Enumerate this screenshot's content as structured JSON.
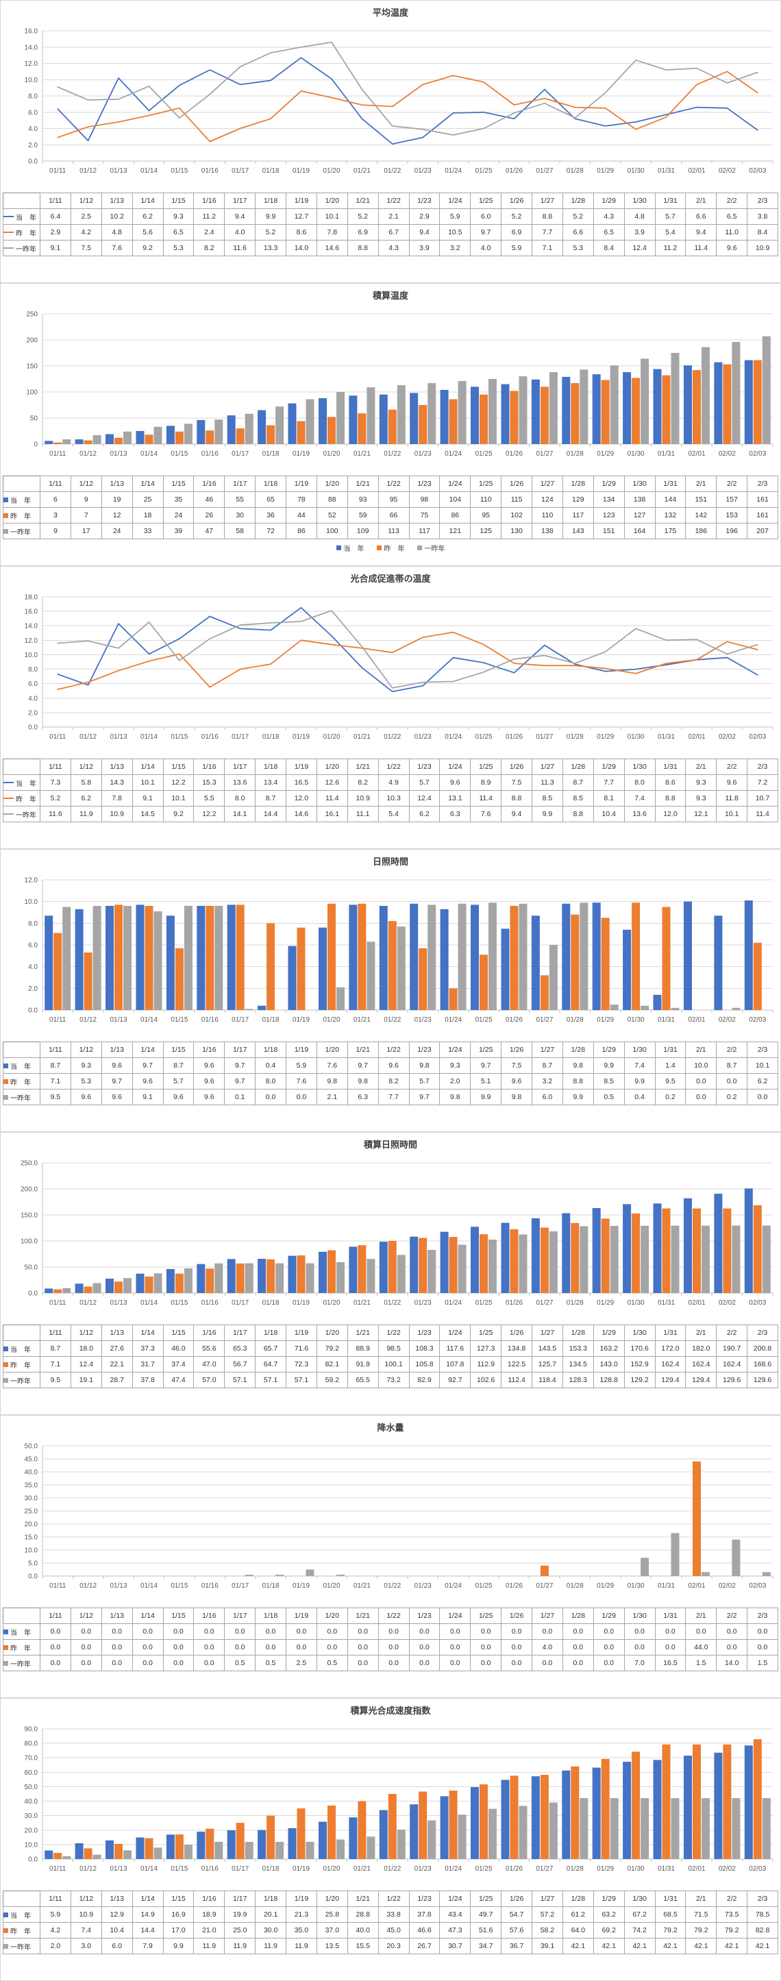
{
  "page": {
    "background": "#ffffff"
  },
  "series_meta": [
    {
      "key": "this_year",
      "label": "当　年",
      "color": "#4472C4"
    },
    {
      "key": "last_year",
      "label": "昨　年",
      "color": "#ED7D31"
    },
    {
      "key": "two_years_ago",
      "label": "一昨年",
      "color": "#A5A5A5"
    }
  ],
  "axis_colors": {
    "grid": "#d9d9d9",
    "axis": "#bfbfbf",
    "tick_label": "#595959"
  },
  "x_labels": [
    "01/11",
    "01/12",
    "01/13",
    "01/14",
    "01/15",
    "01/16",
    "01/17",
    "01/18",
    "01/19",
    "01/20",
    "01/21",
    "01/22",
    "01/23",
    "01/24",
    "01/25",
    "01/26",
    "01/27",
    "01/28",
    "01/29",
    "01/30",
    "01/31",
    "02/01",
    "02/02",
    "02/03"
  ],
  "table_dates": [
    "1/11",
    "1/12",
    "1/13",
    "1/14",
    "1/15",
    "1/16",
    "1/17",
    "1/18",
    "1/19",
    "1/20",
    "1/21",
    "1/22",
    "1/23",
    "1/24",
    "1/25",
    "1/26",
    "1/27",
    "1/28",
    "1/29",
    "1/30",
    "1/31",
    "2/1",
    "2/2",
    "2/3"
  ],
  "chart_data": [
    {
      "id": "average-temperature",
      "type": "line",
      "title": "平均温度",
      "ylim": [
        0,
        16
      ],
      "ytick": 2,
      "decimals": 1,
      "legend": false,
      "grid": true,
      "series": [
        {
          "name": "当年",
          "values": [
            6.4,
            2.5,
            10.2,
            6.2,
            9.3,
            11.2,
            9.4,
            9.9,
            12.7,
            10.1,
            5.2,
            2.1,
            2.9,
            5.9,
            6.0,
            5.2,
            8.8,
            5.2,
            4.3,
            4.8,
            5.7,
            6.6,
            6.5,
            3.8
          ]
        },
        {
          "name": "昨年",
          "values": [
            2.9,
            4.2,
            4.8,
            5.6,
            6.5,
            2.4,
            4.0,
            5.2,
            8.6,
            7.8,
            6.9,
            6.7,
            9.4,
            10.5,
            9.7,
            6.9,
            7.7,
            6.6,
            6.5,
            3.9,
            5.4,
            9.4,
            11.0,
            8.4
          ]
        },
        {
          "name": "一昨年",
          "values": [
            9.1,
            7.5,
            7.6,
            9.2,
            5.3,
            8.2,
            11.6,
            13.3,
            14.0,
            14.6,
            8.8,
            4.3,
            3.9,
            3.2,
            4.0,
            5.9,
            7.1,
            5.3,
            8.4,
            12.4,
            11.2,
            11.4,
            9.6,
            10.9
          ]
        }
      ]
    },
    {
      "id": "cumulative-temperature",
      "type": "bar",
      "title": "積算温度",
      "ylim": [
        0,
        250
      ],
      "ytick": 50,
      "decimals": 0,
      "legend": true,
      "grid": true,
      "series": [
        {
          "name": "当年",
          "values": [
            6,
            9,
            19,
            25,
            35,
            46,
            55,
            65,
            78,
            88,
            93,
            95,
            98,
            104,
            110,
            115,
            124,
            129,
            134,
            138,
            144,
            151,
            157,
            161
          ]
        },
        {
          "name": "昨年",
          "values": [
            3,
            7,
            12,
            18,
            24,
            26,
            30,
            36,
            44,
            52,
            59,
            66,
            75,
            86,
            95,
            102,
            110,
            117,
            123,
            127,
            132,
            142,
            153,
            161
          ]
        },
        {
          "name": "一昨年",
          "values": [
            9,
            17,
            24,
            33,
            39,
            47,
            58,
            72,
            86,
            100,
            109,
            113,
            117,
            121,
            125,
            130,
            138,
            143,
            151,
            164,
            175,
            186,
            196,
            207
          ]
        }
      ]
    },
    {
      "id": "photosynthesis-zone-temperature",
      "type": "line",
      "title": "光合成促進帯の温度",
      "ylim": [
        0,
        18
      ],
      "ytick": 2,
      "decimals": 1,
      "legend": false,
      "grid": true,
      "series": [
        {
          "name": "当年",
          "values": [
            7.3,
            5.8,
            14.3,
            10.1,
            12.2,
            15.3,
            13.6,
            13.4,
            16.5,
            12.6,
            8.2,
            4.9,
            5.7,
            9.6,
            8.9,
            7.5,
            11.3,
            8.7,
            7.7,
            8.0,
            8.6,
            9.3,
            9.6,
            7.2
          ]
        },
        {
          "name": "昨年",
          "values": [
            5.2,
            6.2,
            7.8,
            9.1,
            10.1,
            5.5,
            8.0,
            8.7,
            12.0,
            11.4,
            10.9,
            10.3,
            12.4,
            13.1,
            11.4,
            8.8,
            8.5,
            8.5,
            8.1,
            7.4,
            8.8,
            9.3,
            11.8,
            10.7
          ]
        },
        {
          "name": "一昨年",
          "values": [
            11.6,
            11.9,
            10.9,
            14.5,
            9.2,
            12.2,
            14.1,
            14.4,
            14.6,
            16.1,
            11.1,
            5.4,
            6.2,
            6.3,
            7.6,
            9.4,
            9.9,
            8.8,
            10.4,
            13.6,
            12.0,
            12.1,
            10.1,
            11.4
          ]
        }
      ]
    },
    {
      "id": "sunshine-hours",
      "type": "bar",
      "title": "日照時間",
      "ylim": [
        0,
        12
      ],
      "ytick": 2,
      "decimals": 1,
      "legend": false,
      "grid": true,
      "series": [
        {
          "name": "当年",
          "values": [
            8.7,
            9.3,
            9.6,
            9.7,
            8.7,
            9.6,
            9.7,
            0.4,
            5.9,
            7.6,
            9.7,
            9.6,
            9.8,
            9.3,
            9.7,
            7.5,
            8.7,
            9.8,
            9.9,
            7.4,
            1.4,
            10.0,
            8.7,
            10.1
          ]
        },
        {
          "name": "昨年",
          "values": [
            7.1,
            5.3,
            9.7,
            9.6,
            5.7,
            9.6,
            9.7,
            8.0,
            7.6,
            9.8,
            9.8,
            8.2,
            5.7,
            2.0,
            5.1,
            9.6,
            3.2,
            8.8,
            8.5,
            9.9,
            9.5,
            0.0,
            0.0,
            6.2
          ]
        },
        {
          "name": "一昨年",
          "values": [
            9.5,
            9.6,
            9.6,
            9.1,
            9.6,
            9.6,
            0.1,
            0.0,
            0.0,
            2.1,
            6.3,
            7.7,
            9.7,
            9.8,
            9.9,
            9.8,
            6.0,
            9.9,
            0.5,
            0.4,
            0.2,
            0.0,
            0.2,
            0.0
          ]
        }
      ]
    },
    {
      "id": "cumulative-sunshine-hours",
      "type": "bar",
      "title": "積算日照時間",
      "ylim": [
        0,
        250
      ],
      "ytick": 50,
      "decimals": 1,
      "legend": false,
      "grid": true,
      "series": [
        {
          "name": "当年",
          "values": [
            8.7,
            18.0,
            27.6,
            37.3,
            46.0,
            55.6,
            65.3,
            65.7,
            71.6,
            79.2,
            88.9,
            98.5,
            108.3,
            117.6,
            127.3,
            134.8,
            143.5,
            153.3,
            163.2,
            170.6,
            172.0,
            182.0,
            190.7,
            200.8
          ]
        },
        {
          "name": "昨年",
          "values": [
            7.1,
            12.4,
            22.1,
            31.7,
            37.4,
            47.0,
            56.7,
            64.7,
            72.3,
            82.1,
            91.9,
            100.1,
            105.8,
            107.8,
            112.9,
            122.5,
            125.7,
            134.5,
            143.0,
            152.9,
            162.4,
            162.4,
            162.4,
            168.6
          ]
        },
        {
          "name": "一昨年",
          "values": [
            9.5,
            19.1,
            28.7,
            37.8,
            47.4,
            57.0,
            57.1,
            57.1,
            57.1,
            59.2,
            65.5,
            73.2,
            82.9,
            92.7,
            102.6,
            112.4,
            118.4,
            128.3,
            128.8,
            129.2,
            129.4,
            129.4,
            129.6,
            129.6
          ]
        }
      ]
    },
    {
      "id": "rainfall",
      "type": "bar",
      "title": "降水量",
      "ylim": [
        0,
        50
      ],
      "ytick": 5,
      "decimals": 1,
      "legend": false,
      "grid": true,
      "series": [
        {
          "name": "当年",
          "values": [
            0.0,
            0.0,
            0.0,
            0.0,
            0.0,
            0.0,
            0.0,
            0.0,
            0.0,
            0.0,
            0.0,
            0.0,
            0.0,
            0.0,
            0.0,
            0.0,
            0.0,
            0.0,
            0.0,
            0.0,
            0.0,
            0.0,
            0.0,
            0.0
          ]
        },
        {
          "name": "昨年",
          "values": [
            0.0,
            0.0,
            0.0,
            0.0,
            0.0,
            0.0,
            0.0,
            0.0,
            0.0,
            0.0,
            0.0,
            0.0,
            0.0,
            0.0,
            0.0,
            0.0,
            4.0,
            0.0,
            0.0,
            0.0,
            0.0,
            44.0,
            0.0,
            0.0
          ]
        },
        {
          "name": "一昨年",
          "values": [
            0.0,
            0.0,
            0.0,
            0.0,
            0.0,
            0.0,
            0.5,
            0.5,
            2.5,
            0.5,
            0.0,
            0.0,
            0.0,
            0.0,
            0.0,
            0.0,
            0.0,
            0.0,
            0.0,
            7.0,
            16.5,
            1.5,
            14.0,
            1.5
          ]
        }
      ]
    },
    {
      "id": "cumulative-photosynthesis-rate-index",
      "type": "bar",
      "title": "積算光合成速度指数",
      "ylim": [
        0,
        90
      ],
      "ytick": 10,
      "decimals": 1,
      "legend": false,
      "grid": true,
      "series": [
        {
          "name": "当年",
          "values": [
            5.9,
            10.9,
            12.9,
            14.9,
            16.9,
            18.9,
            19.9,
            20.1,
            21.3,
            25.8,
            28.8,
            33.8,
            37.8,
            43.4,
            49.7,
            54.7,
            57.2,
            61.2,
            63.2,
            67.2,
            68.5,
            71.5,
            73.5,
            78.5
          ]
        },
        {
          "name": "昨年",
          "values": [
            4.2,
            7.4,
            10.4,
            14.4,
            17.0,
            21.0,
            25.0,
            30.0,
            35.0,
            37.0,
            40.0,
            45.0,
            46.6,
            47.3,
            51.6,
            57.6,
            58.2,
            64.0,
            69.2,
            74.2,
            79.2,
            79.2,
            79.2,
            82.8
          ]
        },
        {
          "name": "一昨年",
          "values": [
            2.0,
            3.0,
            6.0,
            7.9,
            9.9,
            11.9,
            11.9,
            11.9,
            11.9,
            13.5,
            15.5,
            20.3,
            26.7,
            30.7,
            34.7,
            36.7,
            39.1,
            42.1,
            42.1,
            42.1,
            42.1,
            42.1,
            42.1,
            42.1
          ]
        }
      ]
    }
  ]
}
